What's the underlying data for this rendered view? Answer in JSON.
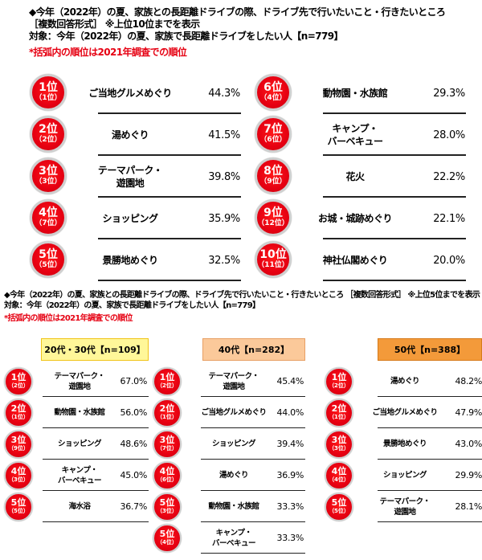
{
  "section1": {
    "title_line1": "◆今年（2022年）の夏、家族との長距離ドライブの際、ドライブ先で行いたいこと・行きたいところ",
    "title_line2": "［複数回答形式］ ※上位10位までを表示",
    "target": "対象：今年（2022年）の夏、家族で長距離ドライブをしたい人【n=779】",
    "note": "*括弧内の順位は2021年調査での順位",
    "left": [
      {
        "rank": "1位",
        "prev": "（1位）",
        "item": "ご当地グルメめぐり",
        "pct": "44.3%"
      },
      {
        "rank": "2位",
        "prev": "（2位）",
        "item": "湯めぐり",
        "pct": "41.5%"
      },
      {
        "rank": "3位",
        "prev": "（3位）",
        "item": "テーマパーク・\n遊園地",
        "pct": "39.8%"
      },
      {
        "rank": "4位",
        "prev": "（7位）",
        "item": "ショッピング",
        "pct": "35.9%"
      },
      {
        "rank": "5位",
        "prev": "（5位）",
        "item": "景勝地めぐり",
        "pct": "32.5%"
      }
    ],
    "right": [
      {
        "rank": "6位",
        "prev": "（4位）",
        "item": "動物園・水族館",
        "pct": "29.3%"
      },
      {
        "rank": "7位",
        "prev": "（6位）",
        "item": "キャンプ・\nバーベキュー",
        "pct": "28.0%"
      },
      {
        "rank": "8位",
        "prev": "（9位）",
        "item": "花火",
        "pct": "22.2%"
      },
      {
        "rank": "9位",
        "prev": "（12位）",
        "item": "お城・城跡めぐり",
        "pct": "22.1%"
      },
      {
        "rank": "10位",
        "prev": "（11位）",
        "item": "神社仏閣めぐり",
        "pct": "20.0%"
      }
    ]
  },
  "section2": {
    "title_line1": "◆今年（2022年）の夏、家族との長距離ドライブの際、ドライブ先で行いたいこと・行きたいところ ［複数回答形式］ ※上位5位までを表示",
    "target": "対象：今年（2022年）の夏、家族で長距離ドライブをしたい人【n=779】",
    "note": "*括弧内の順位は2021年調査での順位",
    "groups": [
      {
        "label": "20代・30代【n=109】",
        "bg": "#fff799",
        "border": "#f0c419",
        "rows": [
          {
            "rank": "1位",
            "prev": "（2位）",
            "item": "テーマパーク・\n遊園地",
            "pct": "67.0%"
          },
          {
            "rank": "2位",
            "prev": "（1位）",
            "item": "動物園・水族館",
            "pct": "56.0%"
          },
          {
            "rank": "3位",
            "prev": "（9位）",
            "item": "ショッピング",
            "pct": "48.6%"
          },
          {
            "rank": "4位",
            "prev": "（3位）",
            "item": "キャンプ・\nバーベキュー",
            "pct": "45.0%"
          },
          {
            "rank": "5位",
            "prev": "（5位）",
            "item": "海水浴",
            "pct": "36.7%"
          }
        ]
      },
      {
        "label": "40代【n=282】",
        "bg": "#fbc99a",
        "border": "#e8a064",
        "rows": [
          {
            "rank": "1位",
            "prev": "（2位）",
            "item": "テーマパーク・\n遊園地",
            "pct": "45.4%"
          },
          {
            "rank": "2位",
            "prev": "（1位）",
            "item": "ご当地グルメめぐり",
            "pct": "44.0%"
          },
          {
            "rank": "3位",
            "prev": "（7位）",
            "item": "ショッピング",
            "pct": "39.4%"
          },
          {
            "rank": "4位",
            "prev": "（6位）",
            "item": "湯めぐり",
            "pct": "36.9%"
          },
          {
            "rank": "5位",
            "prev": "（3位）",
            "item": "動物園・水族館",
            "pct": "33.3%"
          },
          {
            "rank": "5位",
            "prev": "（4位）",
            "item": "キャンプ・\nバーベキュー",
            "pct": "33.3%"
          }
        ]
      },
      {
        "label": "50代【n=388】",
        "bg": "#f39a3a",
        "border": "#d67a1a",
        "rows": [
          {
            "rank": "1位",
            "prev": "（2位）",
            "item": "湯めぐり",
            "pct": "48.2%"
          },
          {
            "rank": "2位",
            "prev": "（1位）",
            "item": "ご当地グルメめぐり",
            "pct": "47.9%"
          },
          {
            "rank": "3位",
            "prev": "（3位）",
            "item": "景勝地めぐり",
            "pct": "43.0%"
          },
          {
            "rank": "4位",
            "prev": "（4位）",
            "item": "ショッピング",
            "pct": "29.9%"
          },
          {
            "rank": "5位",
            "prev": "（5位）",
            "item": "テーマパーク・\n遊園地",
            "pct": "28.1%"
          }
        ]
      }
    ]
  },
  "colors": {
    "badge_red": "#e60012",
    "note_red": "#e60012",
    "badge_ring": "#cfcfcf"
  },
  "chart_data": [
    {
      "type": "table",
      "title": "今年（2022年）の夏、家族との長距離ドライブの際、ドライブ先で行いたいこと・行きたいところ（上位10位, n=779）",
      "columns": [
        "rank",
        "prev_rank_2021",
        "item",
        "percent"
      ],
      "rows": [
        [
          1,
          1,
          "ご当地グルメめぐり",
          44.3
        ],
        [
          2,
          2,
          "湯めぐり",
          41.5
        ],
        [
          3,
          3,
          "テーマパーク・遊園地",
          39.8
        ],
        [
          4,
          7,
          "ショッピング",
          35.9
        ],
        [
          5,
          5,
          "景勝地めぐり",
          32.5
        ],
        [
          6,
          4,
          "動物園・水族館",
          29.3
        ],
        [
          7,
          6,
          "キャンプ・バーベキュー",
          28.0
        ],
        [
          8,
          9,
          "花火",
          22.2
        ],
        [
          9,
          12,
          "お城・城跡めぐり",
          22.1
        ],
        [
          10,
          11,
          "神社仏閣めぐり",
          20.0
        ]
      ]
    },
    {
      "type": "table",
      "title": "20代・30代【n=109】上位5位",
      "columns": [
        "rank",
        "prev_rank_2021",
        "item",
        "percent"
      ],
      "rows": [
        [
          1,
          2,
          "テーマパーク・遊園地",
          67.0
        ],
        [
          2,
          1,
          "動物園・水族館",
          56.0
        ],
        [
          3,
          9,
          "ショッピング",
          48.6
        ],
        [
          4,
          3,
          "キャンプ・バーベキュー",
          45.0
        ],
        [
          5,
          5,
          "海水浴",
          36.7
        ]
      ]
    },
    {
      "type": "table",
      "title": "40代【n=282】上位5位",
      "columns": [
        "rank",
        "prev_rank_2021",
        "item",
        "percent"
      ],
      "rows": [
        [
          1,
          2,
          "テーマパーク・遊園地",
          45.4
        ],
        [
          2,
          1,
          "ご当地グルメめぐり",
          44.0
        ],
        [
          3,
          7,
          "ショッピング",
          39.4
        ],
        [
          4,
          6,
          "湯めぐり",
          36.9
        ],
        [
          5,
          3,
          "動物園・水族館",
          33.3
        ],
        [
          5,
          4,
          "キャンプ・バーベキュー",
          33.3
        ]
      ]
    },
    {
      "type": "table",
      "title": "50代【n=388】上位5位",
      "columns": [
        "rank",
        "prev_rank_2021",
        "item",
        "percent"
      ],
      "rows": [
        [
          1,
          2,
          "湯めぐり",
          48.2
        ],
        [
          2,
          1,
          "ご当地グルメめぐり",
          47.9
        ],
        [
          3,
          3,
          "景勝地めぐり",
          43.0
        ],
        [
          4,
          4,
          "ショッピング",
          29.9
        ],
        [
          5,
          5,
          "テーマパーク・遊園地",
          28.1
        ]
      ]
    }
  ]
}
